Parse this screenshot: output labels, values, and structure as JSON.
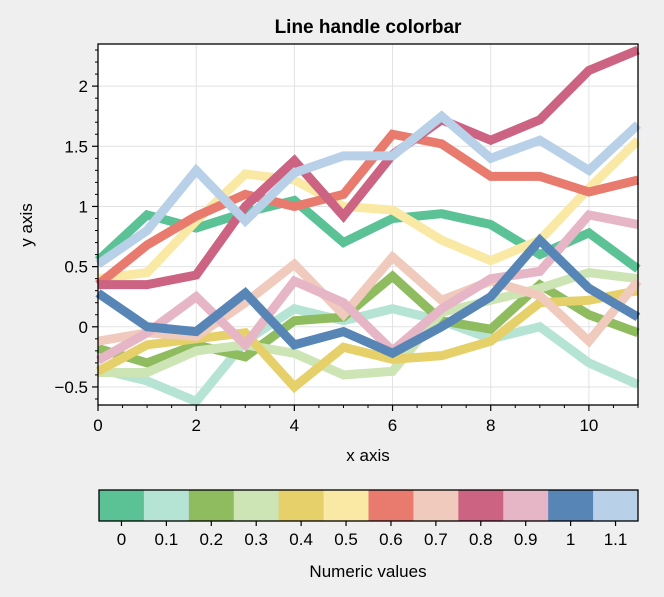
{
  "chart_data": {
    "type": "line",
    "title": "Line handle colorbar",
    "xlabel": "x axis",
    "ylabel": "y axis",
    "xlim": [
      0,
      11
    ],
    "ylim": [
      -0.65,
      2.35
    ],
    "xticks": [
      0,
      2,
      4,
      6,
      8,
      10
    ],
    "yticks": [
      -0.5,
      0,
      0.5,
      1,
      1.5,
      2
    ],
    "ytick_labels": [
      "−0.5",
      "0",
      "0.5",
      "1",
      "1.5",
      "2"
    ],
    "grid": true,
    "x": [
      0,
      1,
      2,
      3,
      4,
      5,
      6,
      7,
      8,
      9,
      10,
      11
    ],
    "series": [
      {
        "value": 0,
        "color": "#5bc296",
        "values": [
          0.55,
          0.93,
          0.82,
          0.95,
          1.05,
          0.7,
          0.9,
          0.94,
          0.85,
          0.6,
          0.78,
          0.48
        ]
      },
      {
        "value": 0.1,
        "color": "#b5e3d4",
        "values": [
          -0.35,
          -0.45,
          -0.62,
          -0.12,
          0.15,
          0.05,
          0.15,
          0.05,
          -0.1,
          0.0,
          -0.3,
          -0.48
        ]
      },
      {
        "value": 0.2,
        "color": "#8fbc5e",
        "values": [
          -0.18,
          -0.3,
          -0.15,
          -0.25,
          0.05,
          0.08,
          0.42,
          0.05,
          -0.02,
          0.35,
          0.1,
          -0.05
        ]
      },
      {
        "value": 0.3,
        "color": "#cde5b5",
        "values": [
          -0.38,
          -0.38,
          -0.2,
          -0.15,
          -0.22,
          -0.4,
          -0.37,
          0.12,
          0.22,
          0.32,
          0.45,
          0.4
        ]
      },
      {
        "value": 0.4,
        "color": "#e6d06a",
        "values": [
          -0.37,
          -0.15,
          -0.1,
          -0.05,
          -0.5,
          -0.17,
          -0.27,
          -0.24,
          -0.12,
          0.2,
          0.22,
          0.3
        ]
      },
      {
        "value": 0.5,
        "color": "#f9e9a5",
        "values": [
          0.4,
          0.45,
          0.88,
          1.27,
          1.22,
          1.0,
          0.97,
          0.72,
          0.55,
          0.72,
          1.15,
          1.55
        ]
      },
      {
        "value": 0.6,
        "color": "#e87a6e",
        "values": [
          0.35,
          0.68,
          0.92,
          1.1,
          1.0,
          1.1,
          1.6,
          1.52,
          1.25,
          1.25,
          1.12,
          1.22
        ]
      },
      {
        "value": 0.7,
        "color": "#f0cbbd",
        "values": [
          -0.12,
          -0.05,
          -0.08,
          0.2,
          0.52,
          0.1,
          0.58,
          0.22,
          0.38,
          0.26,
          -0.12,
          0.38
        ]
      },
      {
        "value": 0.8,
        "color": "#cc6383",
        "values": [
          0.35,
          0.35,
          0.43,
          1.0,
          1.38,
          0.92,
          1.43,
          1.72,
          1.55,
          1.72,
          2.13,
          2.3
        ]
      },
      {
        "value": 0.9,
        "color": "#e6b5c6",
        "values": [
          -0.28,
          -0.05,
          0.25,
          -0.15,
          0.38,
          0.2,
          -0.2,
          0.15,
          0.4,
          0.46,
          0.93,
          0.85
        ]
      },
      {
        "value": 1,
        "color": "#5685b6",
        "values": [
          0.28,
          0.0,
          -0.04,
          0.28,
          -0.15,
          -0.04,
          -0.22,
          0.0,
          0.25,
          0.72,
          0.32,
          0.08
        ]
      },
      {
        "value": 1.1,
        "color": "#b8d0e8",
        "values": [
          0.52,
          0.8,
          1.3,
          0.88,
          1.28,
          1.42,
          1.42,
          1.75,
          1.4,
          1.55,
          1.3,
          1.68
        ]
      }
    ],
    "colorbar": {
      "label": "Numeric values",
      "ticks": [
        "0",
        "0.1",
        "0.2",
        "0.3",
        "0.4",
        "0.5",
        "0.6",
        "0.7",
        "0.8",
        "0.9",
        "1",
        "1.1"
      ]
    }
  }
}
